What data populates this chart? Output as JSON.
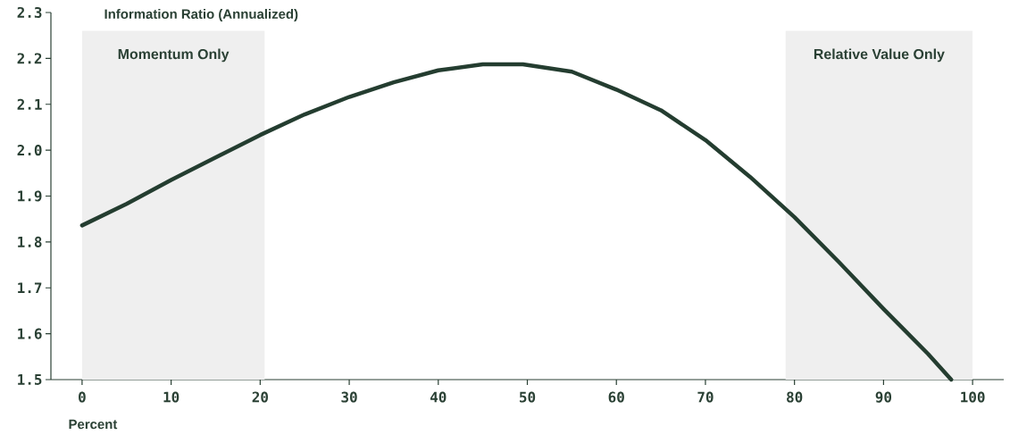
{
  "chart_data": {
    "type": "line",
    "xlabel": "Percent",
    "ylabel": "Information Ratio (Annualized)",
    "x": [
      0,
      5,
      10,
      15,
      20,
      25,
      30,
      35,
      40,
      45,
      49.5,
      55,
      60,
      65,
      70,
      75,
      80,
      85,
      90,
      95,
      97.6
    ],
    "series": [
      {
        "color": "#243d30",
        "values": [
          1.836,
          1.883,
          1.935,
          1.984,
          2.033,
          2.078,
          2.116,
          2.148,
          2.174,
          2.187,
          2.187,
          2.171,
          2.132,
          2.087,
          2.022,
          1.942,
          1.854,
          1.756,
          1.654,
          1.556,
          1.5
        ]
      }
    ],
    "xlim": [
      -3.5,
      103.5
    ],
    "ylim": [
      1.5,
      2.3
    ],
    "xticks": [
      0,
      10,
      20,
      30,
      40,
      50,
      60,
      70,
      80,
      90,
      100
    ],
    "yticks": [
      {
        "value": 1.5,
        "label": "1.5"
      },
      {
        "value": 1.6,
        "label": "1.6"
      },
      {
        "value": 1.7,
        "label": "1.7"
      },
      {
        "value": 1.8,
        "label": "1.8"
      },
      {
        "value": 1.9,
        "label": "1.9"
      },
      {
        "value": 2.0,
        "label": "2.0"
      },
      {
        "value": 2.1,
        "label": "2.1"
      },
      {
        "value": 2.2,
        "label": "2.2"
      },
      {
        "value": 2.3,
        "label": "2.3"
      }
    ],
    "bands": [
      {
        "axis": "x",
        "from": 0,
        "to": 20.5,
        "label": "Momentum Only",
        "color": "#efefef"
      },
      {
        "axis": "x",
        "from": 79,
        "to": 100,
        "label": "Relative Value Only",
        "color": "#efefef"
      }
    ],
    "grid": false,
    "marker": "none",
    "line_style": "solid"
  }
}
